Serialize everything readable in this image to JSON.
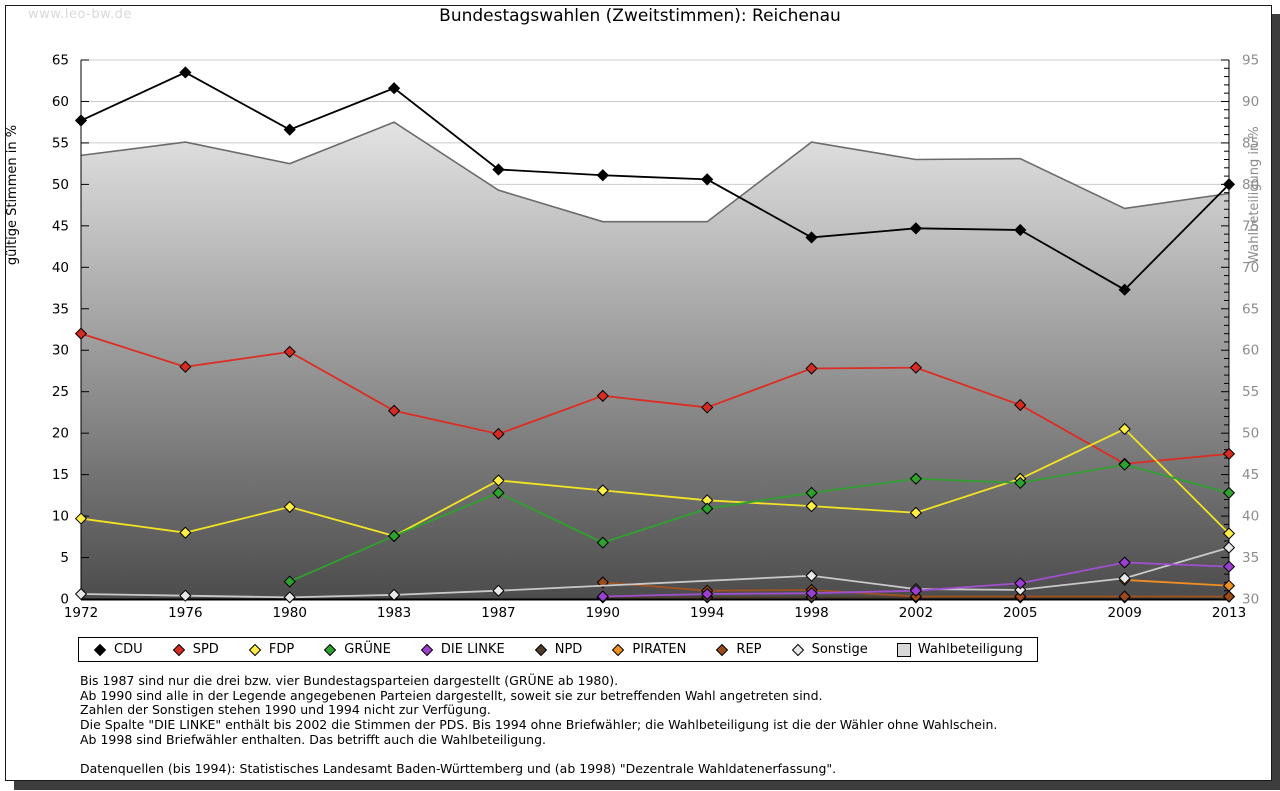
{
  "watermark": "www.leo-bw.de",
  "title": "Bundestagswahlen (Zweitstimmen): Reichenau",
  "chart_data": {
    "type": "line",
    "title": "Bundestagswahlen (Zweitstimmen): Reichenau",
    "xlabel": "",
    "ylabel_left": "gültige Stimmen in %",
    "ylabel_right": "Wahlbeteiligung in %",
    "ylim_left": [
      0,
      65
    ],
    "ylim_right": [
      30,
      95
    ],
    "grid": true,
    "legend_position": "bottom",
    "categories": [
      "1972",
      "1976",
      "1980",
      "1983",
      "1987",
      "1990",
      "1994",
      "1998",
      "2002",
      "2005",
      "2009",
      "2013"
    ],
    "series": [
      {
        "name": "CDU",
        "color": "#000000",
        "fill": "#000000",
        "values": [
          57.7,
          63.5,
          56.6,
          61.6,
          51.8,
          51.1,
          50.6,
          43.6,
          44.7,
          44.5,
          37.3,
          50.0
        ]
      },
      {
        "name": "SPD",
        "color": "#dd2c22",
        "fill": "#d62b22",
        "values": [
          32.0,
          28.0,
          29.8,
          22.7,
          19.9,
          24.5,
          23.1,
          27.8,
          27.9,
          23.4,
          16.3,
          17.5
        ]
      },
      {
        "name": "FDP",
        "color": "#f2e422",
        "fill": "#ffee44",
        "values": [
          9.7,
          8.0,
          11.1,
          7.6,
          14.3,
          13.1,
          11.9,
          11.2,
          10.4,
          14.5,
          20.5,
          7.9
        ]
      },
      {
        "name": "GRÜNE",
        "color": "#2fa12f",
        "fill": "#2fa12f",
        "values": [
          null,
          null,
          2.1,
          7.6,
          12.8,
          6.8,
          10.9,
          12.8,
          14.5,
          14.0,
          16.2,
          12.8
        ]
      },
      {
        "name": "DIE LINKE",
        "color": "#a04fd0",
        "fill": "#9b3fd0",
        "values": [
          null,
          null,
          null,
          null,
          null,
          0.3,
          0.6,
          0.7,
          1.0,
          1.9,
          4.4,
          3.9
        ]
      },
      {
        "name": "NPD",
        "color": "#4e3b2a",
        "fill": "#4e3b2a",
        "values": [
          null,
          null,
          null,
          null,
          null,
          0.2,
          0.2,
          0.2,
          0.2,
          0.2,
          0.2,
          0.3
        ]
      },
      {
        "name": "PIRATEN",
        "color": "#ef8f22",
        "fill": "#ef8f22",
        "values": [
          null,
          null,
          null,
          null,
          null,
          null,
          null,
          null,
          null,
          null,
          2.3,
          1.6
        ]
      },
      {
        "name": "REP",
        "color": "#a0521f",
        "fill": "#9c4a1a",
        "values": [
          null,
          null,
          null,
          null,
          null,
          2.0,
          1.0,
          1.1,
          0.3,
          0.3,
          0.3,
          0.3
        ]
      },
      {
        "name": "Sonstige",
        "color": "#c9c9c9",
        "fill": "#e8e8e8",
        "values": [
          0.6,
          0.4,
          0.2,
          0.5,
          1.0,
          null,
          null,
          2.8,
          1.2,
          1.1,
          2.5,
          6.2
        ]
      }
    ],
    "area_series": {
      "name": "Wahlbeteiligung",
      "axis": "right",
      "line_color": "#6b6b6b",
      "fill_top": "#f7f7f7",
      "fill_bottom": "#4c4c4c",
      "values": [
        83.5,
        85.1,
        82.5,
        87.5,
        79.3,
        75.5,
        75.5,
        85.1,
        83.0,
        83.1,
        77.1,
        78.9
      ]
    },
    "axis_colors": {
      "left_text": "#000000",
      "right_text": "#8c8c8c",
      "grid": "#cccccc",
      "axis_line": "#000000"
    }
  },
  "notes": {
    "lines": [
      "Bis 1987 sind nur die drei bzw. vier Bundestagsparteien dargestellt (GRÜNE ab 1980).",
      "Ab 1990 sind alle in der Legende angegebenen Parteien dargestellt, soweit sie zur betreffenden Wahl angetreten sind.",
      "Zahlen der Sonstigen stehen 1990 und 1994 nicht zur Verfügung.",
      "Die Spalte \"DIE LINKE\" enthält bis 2002 die Stimmen der PDS. Bis 1994 ohne Briefwähler; die Wahlbeteiligung ist die der Wähler ohne Wahlschein.",
      "Ab 1998 sind Briefwähler enthalten. Das betrifft auch die Wahlbeteiligung."
    ],
    "source": "Datenquellen (bis 1994): Statistisches Landesamt Baden-Württemberg und (ab 1998) \"Dezentrale Wahldatenerfassung\"."
  }
}
